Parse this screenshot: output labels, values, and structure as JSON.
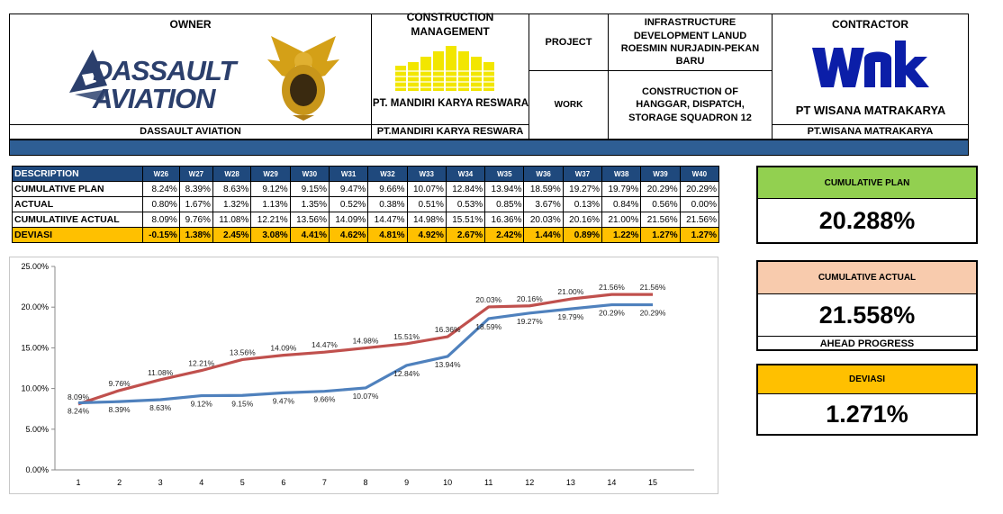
{
  "header": {
    "owner_title": "OWNER",
    "owner_logo_line1": "DASSAULT",
    "owner_logo_line2": "AVIATION",
    "owner_name": "DASSAULT AVIATION",
    "cm_title": "CONSTRUCTION MANAGEMENT",
    "cm_logo_text": "PT. MANDIRI KARYA RESWARA",
    "cm_name": "PT.MANDIRI KARYA RESWARA",
    "project_label": "PROJECT",
    "project_value": "INFRASTRUCTURE DEVELOPMENT LANUD ROESMIN NURJADIN-PEKAN BARU",
    "work_label": "WORK",
    "work_value": "CONSTRUCTION OF HANGGAR, DISPATCH, STORAGE SQUADRON 12",
    "contractor_title": "CONTRACTOR",
    "contractor_logo_text": "PT WISANA MATRAKARYA",
    "contractor_name": "PT.WISANA MATRAKARYA"
  },
  "table": {
    "header_label": "DESCRIPTION",
    "weeks": [
      "W26",
      "W27",
      "W28",
      "W29",
      "W30",
      "W31",
      "W32",
      "W33",
      "W34",
      "W35",
      "W36",
      "W37",
      "W38",
      "W39",
      "W40"
    ],
    "rows": [
      {
        "label": "CUMULATIVE PLAN",
        "values": [
          "8.24%",
          "8.39%",
          "8.63%",
          "9.12%",
          "9.15%",
          "9.47%",
          "9.66%",
          "10.07%",
          "12.84%",
          "13.94%",
          "18.59%",
          "19.27%",
          "19.79%",
          "20.29%",
          "20.29%"
        ]
      },
      {
        "label": "ACTUAL",
        "values": [
          "0.80%",
          "1.67%",
          "1.32%",
          "1.13%",
          "1.35%",
          "0.52%",
          "0.38%",
          "0.51%",
          "0.53%",
          "0.85%",
          "3.67%",
          "0.13%",
          "0.84%",
          "0.56%",
          "0.00%"
        ]
      },
      {
        "label": "CUMULATIIVE ACTUAL",
        "values": [
          "8.09%",
          "9.76%",
          "11.08%",
          "12.21%",
          "13.56%",
          "14.09%",
          "14.47%",
          "14.98%",
          "15.51%",
          "16.36%",
          "20.03%",
          "20.16%",
          "21.00%",
          "21.56%",
          "21.56%"
        ]
      },
      {
        "label": "DEVIASI",
        "values": [
          "-0.15%",
          "1.38%",
          "2.45%",
          "3.08%",
          "4.41%",
          "4.62%",
          "4.81%",
          "4.92%",
          "2.67%",
          "2.42%",
          "1.44%",
          "0.89%",
          "1.22%",
          "1.27%",
          "1.27%"
        ]
      }
    ]
  },
  "summary": {
    "plan_label": "CUMULATIVE PLAN",
    "plan_value": "20.288%",
    "plan_color": "#92d050",
    "actual_label": "CUMULATIVE ACTUAL",
    "actual_value": "21.558%",
    "actual_color": "#f8cbad",
    "ahead_label": "AHEAD PROGRESS",
    "deviasi_label": "DEVIASI",
    "deviasi_value": "1.271%",
    "deviasi_color": "#ffc000"
  },
  "colors": {
    "header_bar": "#2e5e94",
    "table_header": "#1f497d",
    "plan_line": "#4f81bd",
    "actual_line": "#c0504d"
  },
  "chart_data": {
    "type": "line",
    "x": [
      1,
      2,
      3,
      4,
      5,
      6,
      7,
      8,
      9,
      10,
      11,
      12,
      13,
      14,
      15
    ],
    "ylim": [
      0,
      25
    ],
    "yticks": [
      "0.00%",
      "5.00%",
      "10.00%",
      "15.00%",
      "20.00%",
      "25.00%"
    ],
    "title": "",
    "xlabel": "",
    "ylabel": "",
    "grid": false,
    "series": [
      {
        "color": "#4f81bd",
        "values": [
          8.24,
          8.39,
          8.63,
          9.12,
          9.15,
          9.47,
          9.66,
          10.07,
          12.84,
          13.94,
          18.59,
          19.27,
          19.79,
          20.29,
          20.29
        ],
        "labels": [
          "8.24%",
          "8.39%",
          "8.63%",
          "9.12%",
          "9.15%",
          "9.47%",
          "9.66%",
          "10.07%",
          "12.84%",
          "13.94%",
          "18.59%",
          "19.27%",
          "19.79%",
          "20.29%",
          "20.29%"
        ]
      },
      {
        "color": "#c0504d",
        "values": [
          8.09,
          9.76,
          11.08,
          12.21,
          13.56,
          14.09,
          14.47,
          14.98,
          15.51,
          16.36,
          20.03,
          20.16,
          21.0,
          21.56,
          21.56
        ],
        "labels": [
          "8.09%",
          "9.76%",
          "11.08%",
          "12.21%",
          "13.56%",
          "14.09%",
          "14.47%",
          "14.98%",
          "15.51%",
          "16.36%",
          "20.03%",
          "20.16%",
          "21.00%",
          "21.56%",
          "21.56%"
        ]
      }
    ]
  }
}
